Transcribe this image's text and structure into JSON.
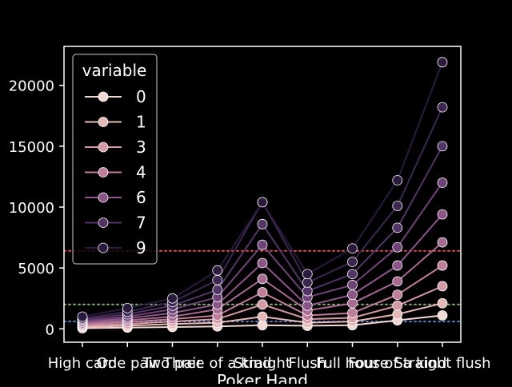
{
  "chart_data": {
    "type": "line",
    "xlabel": "Poker Hand",
    "ylabel": "",
    "categories": [
      "High card",
      "One pair",
      "Two pair",
      "Three of a kind",
      "Straight",
      "Flush",
      "Full house",
      "Four of a kind",
      "Straight flush"
    ],
    "ylim": [
      -1100,
      23200
    ],
    "yticks": [
      0,
      5000,
      10000,
      15000,
      20000
    ],
    "grid": false,
    "legend": {
      "title": "variable",
      "placement": "top-left"
    },
    "background": "#000000",
    "foreground": "#ffffff",
    "series": [
      {
        "name": "0",
        "color": "#f2d8d2",
        "values": [
          50,
          100,
          150,
          200,
          300,
          250,
          300,
          700,
          1100
        ]
      },
      {
        "name": "1",
        "color": "#e6b9b7",
        "values": [
          150,
          250,
          400,
          500,
          1000,
          500,
          600,
          1200,
          2100
        ]
      },
      {
        "name": "3",
        "color": "#d69aa6",
        "values": [
          250,
          400,
          600,
          800,
          2000,
          800,
          900,
          1900,
          3500
        ]
      },
      {
        "name": "4",
        "color": "#c07d9a",
        "values": [
          350,
          550,
          800,
          1100,
          3000,
          1100,
          1300,
          2800,
          5200
        ]
      },
      {
        "name": "",
        "color": "#a86a93",
        "values": [
          450,
          700,
          1000,
          1600,
          4100,
          1500,
          2100,
          3900,
          7100
        ]
      },
      {
        "name": "6",
        "color": "#8c5588",
        "values": [
          550,
          850,
          1300,
          2000,
          5400,
          1900,
          2800,
          5200,
          9400
        ]
      },
      {
        "name": "",
        "color": "#6f4378",
        "values": [
          650,
          1000,
          1600,
          2600,
          6900,
          2600,
          3600,
          6700,
          12000
        ]
      },
      {
        "name": "7",
        "color": "#533466",
        "values": [
          750,
          1200,
          1900,
          3200,
          8600,
          3100,
          4500,
          8300,
          15000
        ]
      },
      {
        "name": "",
        "color": "#3b2750",
        "values": [
          850,
          1400,
          2200,
          4000,
          10400,
          3800,
          5500,
          10100,
          18200
        ]
      },
      {
        "name": "9",
        "color": "#2a1b3e",
        "values": [
          1000,
          1700,
          2500,
          4800,
          10400,
          4500,
          6600,
          12200,
          21900
        ]
      }
    ],
    "reference_lines": [
      {
        "value": 6400,
        "color": "#d9534f",
        "style": "dotted"
      },
      {
        "value": 2000,
        "color": "#7faa6e",
        "style": "dotted"
      },
      {
        "value": 600,
        "color": "#5a7fbf",
        "style": "dotted"
      }
    ],
    "legend_entries": [
      {
        "label": "0",
        "series_index": 0
      },
      {
        "label": "1",
        "series_index": 1
      },
      {
        "label": "3",
        "series_index": 2
      },
      {
        "label": "4",
        "series_index": 3
      },
      {
        "label": "6",
        "series_index": 5
      },
      {
        "label": "7",
        "series_index": 7
      },
      {
        "label": "9",
        "series_index": 9
      }
    ]
  }
}
